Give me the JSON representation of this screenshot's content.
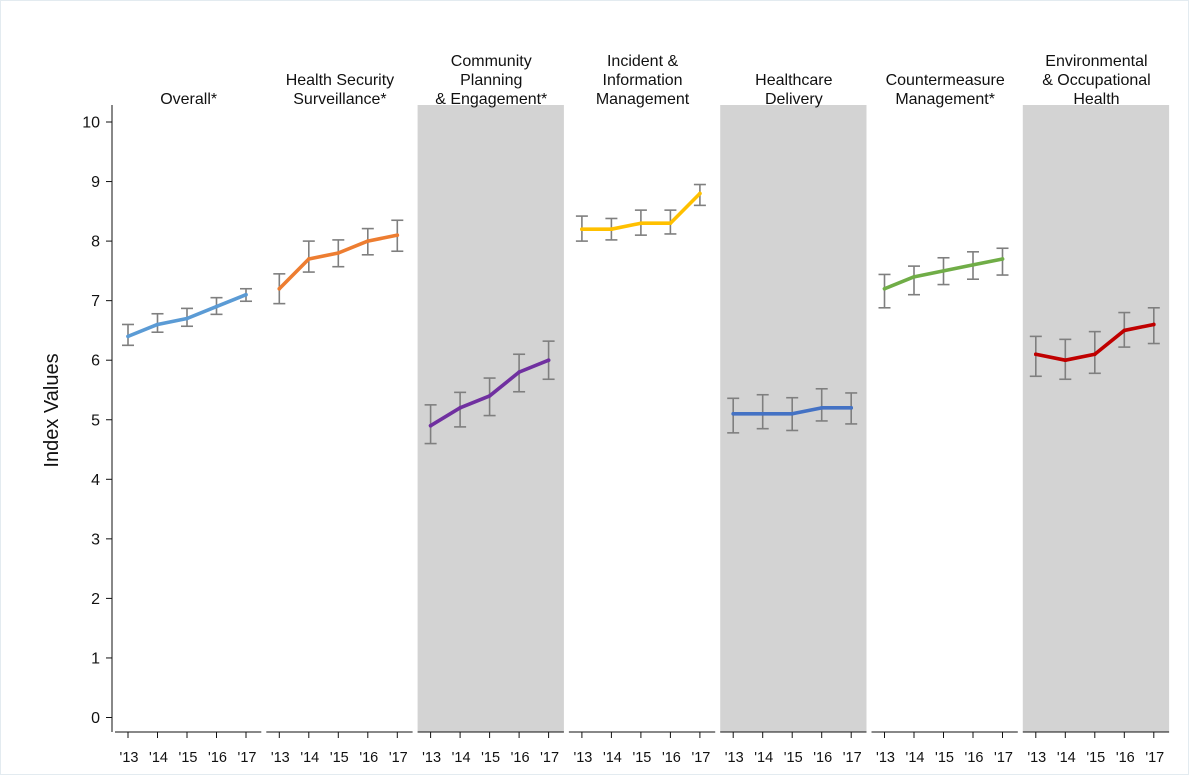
{
  "chart_data": {
    "type": "line",
    "ylabel": "Index Values",
    "ylim": [
      0,
      10
    ],
    "yticks": [
      0,
      1,
      2,
      3,
      4,
      5,
      6,
      7,
      8,
      9,
      10
    ],
    "x": [
      "'13",
      "'14",
      "'15",
      "'16",
      "'17"
    ],
    "grid": false,
    "shaded_panels": [
      2,
      4,
      6
    ],
    "shade_color": "#d3d3d3",
    "errorbar_color": "#7f7f7f",
    "panels": [
      {
        "title": [
          "Overall*"
        ],
        "color": "#5b9bd5",
        "values": [
          6.4,
          6.6,
          6.7,
          6.9,
          7.1
        ],
        "lower": [
          6.25,
          6.47,
          6.57,
          6.77,
          6.99
        ],
        "upper": [
          6.6,
          6.78,
          6.87,
          7.05,
          7.2
        ]
      },
      {
        "title": [
          "Health Security",
          "Surveillance*"
        ],
        "color": "#ed7d31",
        "values": [
          7.2,
          7.7,
          7.8,
          8.0,
          8.1
        ],
        "lower": [
          6.95,
          7.48,
          7.57,
          7.77,
          7.83
        ],
        "upper": [
          7.45,
          8.0,
          8.02,
          8.21,
          8.35
        ]
      },
      {
        "title": [
          "Community",
          "Planning",
          "& Engagement*"
        ],
        "color": "#7030a0",
        "values": [
          4.9,
          5.2,
          5.4,
          5.8,
          6.0
        ],
        "lower": [
          4.6,
          4.88,
          5.07,
          5.47,
          5.68
        ],
        "upper": [
          5.25,
          5.46,
          5.7,
          6.1,
          6.32
        ]
      },
      {
        "title": [
          "Incident &",
          "Information",
          "Management"
        ],
        "color": "#ffc000",
        "values": [
          8.2,
          8.2,
          8.3,
          8.3,
          8.8
        ],
        "lower": [
          8.0,
          8.02,
          8.1,
          8.12,
          8.6
        ],
        "upper": [
          8.42,
          8.38,
          8.52,
          8.52,
          8.95
        ]
      },
      {
        "title": [
          "Healthcare",
          "Delivery"
        ],
        "color": "#4472c4",
        "values": [
          5.1,
          5.1,
          5.1,
          5.2,
          5.2
        ],
        "lower": [
          4.78,
          4.85,
          4.82,
          4.98,
          4.93
        ],
        "upper": [
          5.36,
          5.42,
          5.37,
          5.52,
          5.45
        ]
      },
      {
        "title": [
          "Countermeasure",
          "Management*"
        ],
        "color": "#70ad47",
        "values": [
          7.2,
          7.4,
          7.5,
          7.6,
          7.7
        ],
        "lower": [
          6.88,
          7.1,
          7.27,
          7.36,
          7.43
        ],
        "upper": [
          7.44,
          7.58,
          7.72,
          7.82,
          7.88
        ]
      },
      {
        "title": [
          "Environmental",
          "& Occupational",
          "Health"
        ],
        "color": "#c00000",
        "values": [
          6.1,
          6.0,
          6.1,
          6.5,
          6.6
        ],
        "lower": [
          5.73,
          5.68,
          5.78,
          6.22,
          6.28
        ],
        "upper": [
          6.4,
          6.35,
          6.48,
          6.8,
          6.88
        ]
      }
    ]
  }
}
